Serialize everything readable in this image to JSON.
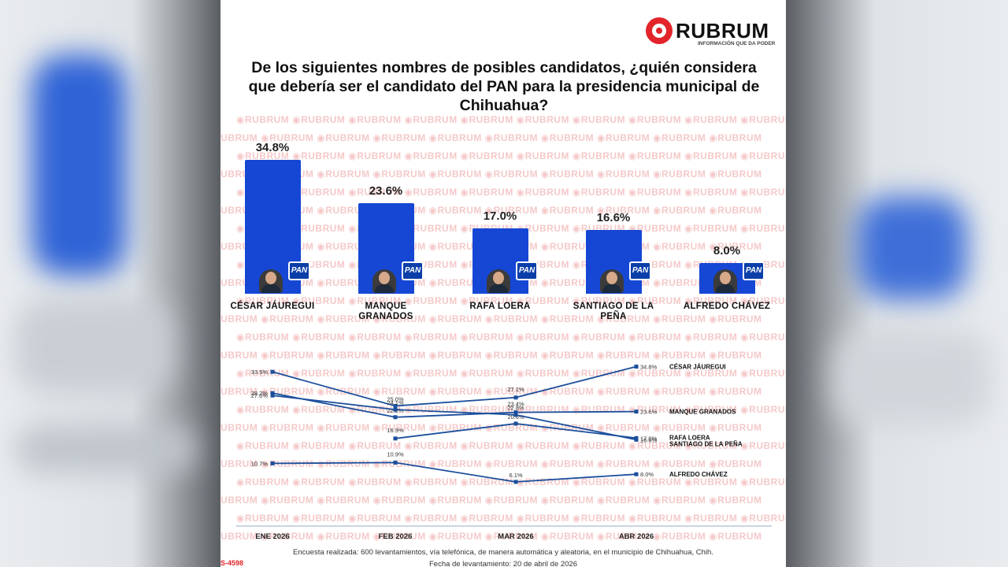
{
  "watermark_text": "RUBRUM",
  "logo": {
    "name": "RUBRUM",
    "tagline": "INFORMACIÓN QUE DA PODER",
    "color": "#e3242b"
  },
  "title": "De los siguientes nombres de posibles candidatos, ¿quién considera que debería ser el candidato del PAN para la presidencia municipal de Chihuahua?",
  "party_badge": "PAN",
  "colors": {
    "bar": "#1547d4",
    "line": "#1b4f9c",
    "brand_red": "#e3242b"
  },
  "chart_data": [
    {
      "type": "bar",
      "categories": [
        "CÉSAR JÁUREGUI",
        "MANQUE GRANADOS",
        "RAFA LOERA",
        "SANTIAGO DE LA PEÑA",
        "ALFREDO CHÁVEZ"
      ],
      "category_lines": [
        [
          "CÉSAR JÁUREGUI"
        ],
        [
          "MANQUE",
          "GRANADOS"
        ],
        [
          "RAFA LOERA"
        ],
        [
          "SANTIAGO DE LA",
          "PEÑA"
        ],
        [
          "ALFREDO CHÁVEZ"
        ]
      ],
      "values": [
        34.8,
        23.6,
        17.0,
        16.6,
        8.0
      ],
      "labels": [
        "34.8%",
        "23.6%",
        "17.0%",
        "16.6%",
        "8.0%"
      ],
      "ylim": [
        0,
        40
      ]
    },
    {
      "type": "line",
      "x": [
        "ENE 2026",
        "FEB 2026",
        "MAR 2026",
        "ABR 2026"
      ],
      "ylim": [
        0,
        40
      ],
      "series": [
        {
          "name": "CÉSAR JÁUREGUI",
          "values": [
            33.5,
            25.0,
            27.1,
            34.8
          ],
          "labels": [
            "33.5%",
            "25.0%",
            "27.1%",
            "34.8%"
          ]
        },
        {
          "name": "MANQUE GRANADOS",
          "values": [
            28.2,
            22.2,
            23.4,
            23.6
          ],
          "labels": [
            "28.2%",
            "22.2%",
            "23.4%",
            "23.6%"
          ]
        },
        {
          "name": "RAFA LOERA",
          "values": [
            null,
            16.9,
            20.6,
            17.0
          ],
          "labels": [
            "",
            "16.9%",
            "20.6%",
            "17.0%"
          ]
        },
        {
          "name": "SANTIAGO DE LA PEÑA",
          "values": [
            27.6,
            24.1,
            22.8,
            16.6
          ],
          "labels": [
            "27.6%",
            "24.1%",
            "22.8%",
            "16.6%"
          ]
        },
        {
          "name": "ALFREDO CHÁVEZ",
          "values": [
            10.7,
            10.9,
            6.1,
            8.0
          ],
          "labels": [
            "10.7%",
            "10.9%",
            "6.1%",
            "8.0%"
          ]
        }
      ]
    }
  ],
  "footer": {
    "method": "Encuesta realizada: 600 levantamientos, vía telefónica, de manera automática y aleatoria, en el municipio de Chihuahua, Chih.",
    "date": "Fecha de levantamiento: 20 de abril de 2026"
  },
  "code_text": "S-4598"
}
